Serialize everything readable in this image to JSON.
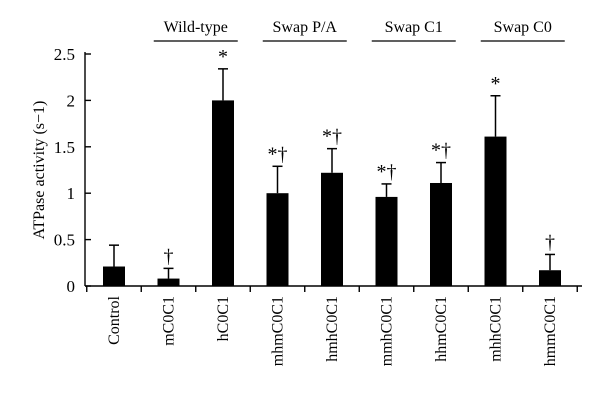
{
  "chart_data": {
    "type": "bar",
    "title": "",
    "xlabel": "",
    "ylabel": "ATPase activity (s−1)",
    "ylim": [
      0,
      2.5
    ],
    "yticks": [
      "0",
      "0.5",
      "1",
      "1.5",
      "2",
      "2.5"
    ],
    "grid": false,
    "bar_color": "#000000",
    "categories": [
      "Control",
      "mC0C1",
      "hC0C1",
      "mhmC0C1",
      "hmhC0C1",
      "mmhC0C1",
      "hhmC0C1",
      "mhhC0C1",
      "hmmC0C1"
    ],
    "values": [
      0.21,
      0.08,
      2.0,
      1.0,
      1.22,
      0.96,
      1.11,
      1.61,
      0.17
    ],
    "errors": [
      0.23,
      0.11,
      0.34,
      0.29,
      0.26,
      0.14,
      0.22,
      0.44,
      0.17
    ],
    "annotations": [
      "",
      "†",
      "*",
      "*†",
      "*†",
      "*†",
      "*†",
      "*",
      "†"
    ],
    "groups": [
      {
        "label": "Wild-type",
        "members": [
          "mC0C1",
          "hC0C1"
        ]
      },
      {
        "label": "Swap P/A",
        "members": [
          "mhmC0C1",
          "hmhC0C1"
        ]
      },
      {
        "label": "Swap C1",
        "members": [
          "mmhC0C1",
          "hhmC0C1"
        ]
      },
      {
        "label": "Swap C0",
        "members": [
          "mhhC0C1",
          "hmmC0C1"
        ]
      }
    ]
  }
}
